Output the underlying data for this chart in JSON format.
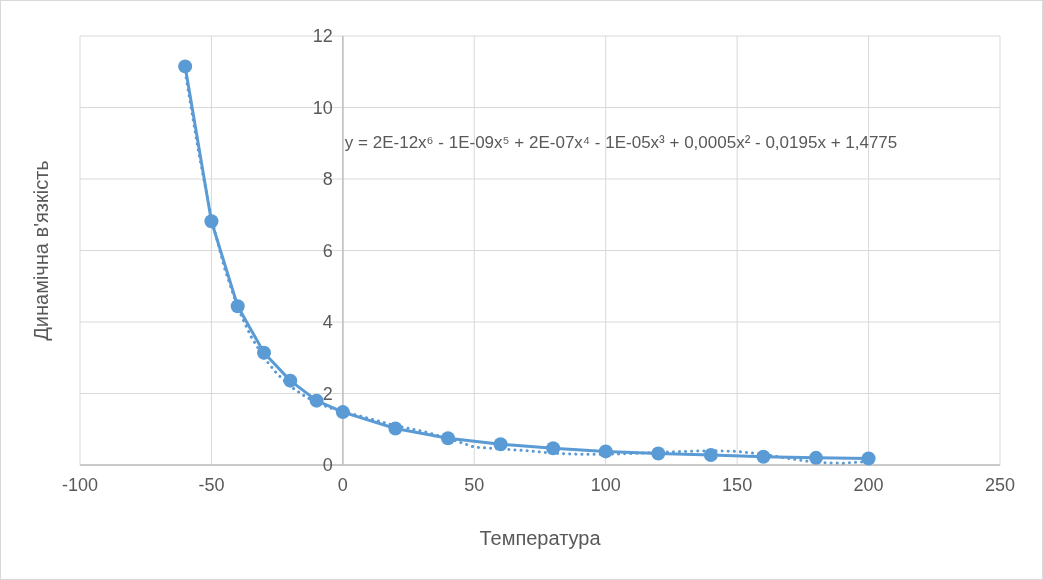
{
  "chart_data": {
    "type": "line",
    "xlabel": "Температура",
    "ylabel": "Динамічна в'язкість",
    "xlim": [
      -100,
      250
    ],
    "xticks": [
      -100,
      -50,
      0,
      50,
      100,
      150,
      200,
      250
    ],
    "ylim": [
      0,
      12
    ],
    "yticks": [
      {
        "value": 0,
        "label": "0"
      },
      {
        "value": 2,
        "label": "2"
      },
      {
        "value": 4,
        "label": "4"
      },
      {
        "value": 6,
        "label": "6"
      },
      {
        "value": 8,
        "label": "8"
      },
      {
        "value": 10,
        "label": "10"
      },
      {
        "value": 12,
        "label": "12"
      }
    ],
    "grid": true,
    "series": [
      {
        "color": "#5b9bd5",
        "marker": "circle",
        "line_style": "solid",
        "x": [
          -60,
          -50,
          -40,
          -30,
          -20,
          -10,
          0,
          20,
          40,
          60,
          80,
          100,
          120,
          140,
          160,
          180,
          200
        ],
        "values": [
          11.15,
          6.82,
          4.44,
          3.14,
          2.36,
          1.8,
          1.48,
          1.02,
          0.75,
          0.58,
          0.47,
          0.38,
          0.32,
          0.28,
          0.23,
          0.2,
          0.18
        ]
      },
      {
        "color": "#5b9bd5",
        "marker": "none",
        "line_style": "dotted",
        "x": [
          -60,
          -55,
          -50,
          -45,
          -40,
          -35,
          -30,
          -25,
          -20,
          -15,
          -10,
          -5,
          0,
          10,
          20,
          30,
          40,
          50,
          60,
          70,
          80,
          90,
          100,
          110,
          120,
          130,
          140,
          150,
          160,
          170,
          180,
          190,
          200
        ],
        "values": [
          11.0,
          8.8,
          6.9,
          5.5,
          4.4,
          3.6,
          3.0,
          2.55,
          2.2,
          1.95,
          1.75,
          1.6,
          1.5,
          1.3,
          1.1,
          0.95,
          0.75,
          0.5,
          0.45,
          0.4,
          0.33,
          0.3,
          0.3,
          0.32,
          0.35,
          0.38,
          0.4,
          0.38,
          0.3,
          0.18,
          0.07,
          0.05,
          0.1
        ]
      }
    ],
    "annotations": [
      "y = 2E-12x⁶ - 1E-09x⁵ + 2E-07x⁴ - 1E-05x³ + 0,0005x² - 0,0195x + 1,4775"
    ]
  }
}
